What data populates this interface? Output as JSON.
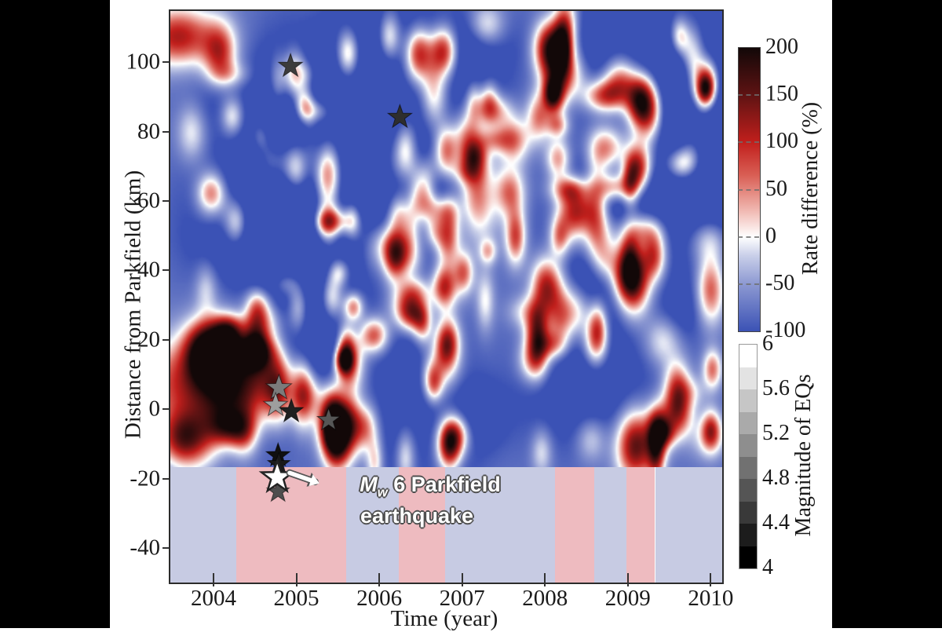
{
  "figure": {
    "page_bg": "#000000",
    "canvas_bg": "#ffffff"
  },
  "chart_data": {
    "type": "heatmap",
    "title": "",
    "xlabel": "Time (year)",
    "ylabel": "Distance from Parkfield (km)",
    "x_domain": [
      2003.46,
      2010.12
    ],
    "y_domain_km": [
      -49.5,
      115.2
    ],
    "heatmap_bottom_km": -16.3,
    "x_ticks": [
      2004,
      2005,
      2006,
      2007,
      2008,
      2009,
      2010
    ],
    "x_tick_labels": [
      "2004",
      "2005",
      "2006",
      "2007",
      "2008",
      "2009",
      "2010"
    ],
    "y_ticks": [
      100,
      80,
      60,
      40,
      20,
      0,
      -20,
      -40
    ],
    "y_tick_labels": [
      "100",
      "80",
      "60",
      "40",
      "20",
      "0",
      "-20",
      "-40"
    ],
    "grid": false,
    "colormap_stops": [
      {
        "v": -100,
        "c": "#3B52B5"
      },
      {
        "v": -50,
        "c": "#8D99D2"
      },
      {
        "v": -20,
        "c": "#C9CFE9"
      },
      {
        "v": 0,
        "c": "#FFFFFF"
      },
      {
        "v": 30,
        "c": "#EFB3AC"
      },
      {
        "v": 65,
        "c": "#D95F55"
      },
      {
        "v": 100,
        "c": "#C11F1C"
      },
      {
        "v": 150,
        "c": "#5F1313"
      },
      {
        "v": 200,
        "c": "#120808"
      }
    ],
    "rate_colorbar": {
      "label": "Rate difference (%)",
      "range": [
        -100,
        200
      ],
      "tick_values": [
        200,
        150,
        100,
        50,
        0,
        -50,
        -100
      ],
      "tick_labels": [
        "200",
        "150",
        "100",
        "50",
        "0",
        "-50",
        "-100"
      ]
    },
    "magnitude_colorbar": {
      "label": "Magnitude of EQs",
      "range": [
        4,
        6
      ],
      "segments": 10,
      "top_color": "#FFFFFF",
      "bottom_color": "#000000",
      "tick_values": [
        6,
        5.6,
        5.2,
        4.8,
        4.4,
        4
      ],
      "tick_labels": [
        "6",
        "5.6",
        "5.2",
        "4.8",
        "4.4",
        "4"
      ]
    },
    "seasonal_bands": {
      "colors": {
        "blue": "#C7CBE3",
        "pink": "#EEBBC0"
      },
      "intervals": [
        {
          "start": 2003.46,
          "end": 2004.26,
          "color": "blue"
        },
        {
          "start": 2004.26,
          "end": 2005.58,
          "color": "pink"
        },
        {
          "start": 2005.58,
          "end": 2006.22,
          "color": "blue"
        },
        {
          "start": 2006.22,
          "end": 2006.78,
          "color": "pink"
        },
        {
          "start": 2006.78,
          "end": 2008.1,
          "color": "blue"
        },
        {
          "start": 2008.1,
          "end": 2008.58,
          "color": "pink"
        },
        {
          "start": 2008.58,
          "end": 2008.96,
          "color": "blue"
        },
        {
          "start": 2008.96,
          "end": 2009.31,
          "color": "pink"
        },
        {
          "start": 2009.31,
          "end": 2010.12,
          "color": "blue"
        }
      ]
    },
    "earthquake_stars": [
      {
        "year": 2004.91,
        "km": 99.3,
        "mag": 4.4,
        "color": "#3C3C3C",
        "r": 16
      },
      {
        "year": 2006.23,
        "km": 84.6,
        "mag": 4.3,
        "color": "#2E2E2E",
        "r": 16
      },
      {
        "year": 2004.77,
        "km": 6.6,
        "mag": 5.0,
        "color": "#7B7B7B",
        "r": 17
      },
      {
        "year": 2004.73,
        "km": 1.6,
        "mag": 5.3,
        "color": "#9E9E9E",
        "r": 16
      },
      {
        "year": 2004.92,
        "km": -0.2,
        "mag": 4.1,
        "color": "#1F1F1F",
        "r": 16
      },
      {
        "year": 2005.37,
        "km": -2.7,
        "mag": 4.7,
        "color": "#565656",
        "r": 15
      },
      {
        "year": 2004.76,
        "km": -12.9,
        "mag": 4.0,
        "color": "#101010",
        "r": 16
      },
      {
        "year": 2004.77,
        "km": -15.4,
        "mag": 4.1,
        "color": "#1A1A1A",
        "r": 15
      },
      {
        "year": 2004.76,
        "km": -23.3,
        "mag": 4.6,
        "color": "#4E4E4E",
        "r": 15
      },
      {
        "year": 2004.75,
        "km": -19.2,
        "mag": 6.0,
        "color": "#FFFFFF",
        "r": 21
      }
    ],
    "annotation": {
      "m": "M",
      "sub": "w",
      "rest": " 6 Parkfield",
      "line2": "earthquake",
      "arrow": {
        "x_year": [
          2004.9,
          2005.26
        ],
        "y_km": [
          -17.9,
          -20.9
        ]
      }
    },
    "activity_bursts": {
      "format": [
        "year",
        "km",
        "sigma_year",
        "sigma_km",
        "amplitude_pct"
      ],
      "events": [
        [
          2003.55,
          108,
          0.16,
          3,
          190
        ],
        [
          2003.7,
          8,
          0.28,
          4.5,
          160
        ],
        [
          2003.75,
          -8,
          0.1,
          3,
          150
        ],
        [
          2003.95,
          63,
          0.06,
          2,
          120
        ],
        [
          2004.05,
          103,
          0.07,
          3,
          160
        ],
        [
          2004.2,
          85,
          0.05,
          2,
          110
        ],
        [
          2004.3,
          9,
          0.18,
          4.5,
          180
        ],
        [
          2004.35,
          -6,
          0.06,
          2.5,
          140
        ],
        [
          2004.5,
          30,
          0.05,
          2,
          125
        ],
        [
          2004.75,
          7,
          0.06,
          3.5,
          165
        ],
        [
          2004.95,
          97,
          0.05,
          2.5,
          175
        ],
        [
          2004.97,
          70,
          0.06,
          3,
          205
        ],
        [
          2005.0,
          30,
          0.05,
          3,
          150
        ],
        [
          2005.05,
          5,
          0.05,
          3.5,
          170
        ],
        [
          2005.35,
          68,
          0.06,
          3.5,
          235
        ],
        [
          2005.4,
          33,
          0.05,
          2.5,
          150
        ],
        [
          2005.42,
          -3,
          0.05,
          3,
          225
        ],
        [
          2005.6,
          103,
          0.05,
          2.5,
          165
        ],
        [
          2005.65,
          55,
          0.04,
          2,
          130
        ],
        [
          2006.1,
          108,
          0.05,
          2.5,
          150
        ],
        [
          2006.45,
          104,
          0.06,
          2.5,
          215
        ],
        [
          2006.47,
          62,
          0.05,
          2.5,
          150
        ],
        [
          2006.5,
          25,
          0.04,
          2,
          130
        ],
        [
          2006.75,
          104,
          0.06,
          2.5,
          235
        ],
        [
          2006.78,
          75,
          0.05,
          2.5,
          160
        ],
        [
          2006.8,
          50,
          0.05,
          2.5,
          175
        ],
        [
          2006.8,
          20,
          0.05,
          2.5,
          205
        ],
        [
          2006.82,
          -10,
          0.05,
          2.5,
          235
        ],
        [
          2007.0,
          40,
          0.04,
          2,
          115
        ],
        [
          2007.3,
          90,
          0.04,
          2,
          105
        ],
        [
          2007.9,
          85,
          0.05,
          2.5,
          130
        ],
        [
          2008.1,
          92,
          0.05,
          2.5,
          150
        ],
        [
          2008.15,
          50,
          0.04,
          2,
          115
        ],
        [
          2008.6,
          60,
          0.05,
          5,
          140
        ],
        [
          2008.62,
          25,
          0.04,
          2.5,
          135
        ],
        [
          2009.05,
          38,
          0.07,
          3.5,
          250
        ],
        [
          2009.1,
          70,
          0.06,
          2.5,
          255
        ],
        [
          2009.12,
          90,
          0.06,
          2.5,
          185
        ],
        [
          2009.07,
          -10,
          0.08,
          3.5,
          240
        ],
        [
          2009.3,
          45,
          0.05,
          2.5,
          170
        ],
        [
          2009.35,
          -5,
          0.05,
          2.5,
          160
        ],
        [
          2009.6,
          108,
          0.04,
          2,
          135
        ],
        [
          2009.95,
          95,
          0.05,
          2.5,
          160
        ],
        [
          2009.98,
          35,
          0.06,
          3.5,
          170
        ],
        [
          2010.0,
          12,
          0.04,
          2,
          140
        ]
      ]
    },
    "noise": {
      "seed": 7,
      "base": -78,
      "count_pos": 130,
      "pos_amp": [
        45,
        175
      ],
      "pos_st": [
        0.035,
        0.085
      ],
      "pos_sd": [
        1.2,
        3.2
      ],
      "count_neg": 40,
      "neg_amp": [
        -60,
        -25
      ],
      "neg_st": [
        0.1,
        0.3
      ],
      "neg_sd": [
        3,
        10
      ]
    }
  }
}
